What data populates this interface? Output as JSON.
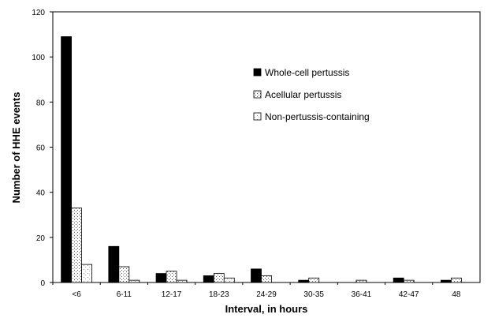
{
  "chart_data": {
    "type": "bar",
    "title": "",
    "xlabel": "Interval, in hours",
    "ylabel": "Number of HHE events",
    "ylim": [
      0,
      120
    ],
    "yticks": [
      0,
      20,
      40,
      60,
      80,
      100,
      120
    ],
    "grid": false,
    "legend_position": "top-right",
    "categories": [
      "<6",
      "6-11",
      "12-17",
      "18-23",
      "24-29",
      "30-35",
      "36-41",
      "42-47",
      "48"
    ],
    "series": [
      {
        "name": "Whole-cell pertussis",
        "pattern": "solid-black",
        "values": [
          109,
          16,
          4,
          3,
          6,
          1,
          0,
          2,
          1
        ]
      },
      {
        "name": "Acellular pertussis",
        "pattern": "fine-dots",
        "values": [
          33,
          7,
          5,
          4,
          3,
          2,
          1,
          1,
          2
        ]
      },
      {
        "name": "Non-pertussis-containing",
        "pattern": "light-dots",
        "values": [
          8,
          1,
          1,
          2,
          0,
          0,
          0,
          0,
          0
        ]
      }
    ],
    "colors": {
      "whole_cell": "#000000",
      "outline": "#000000",
      "background": "#ffffff"
    }
  }
}
